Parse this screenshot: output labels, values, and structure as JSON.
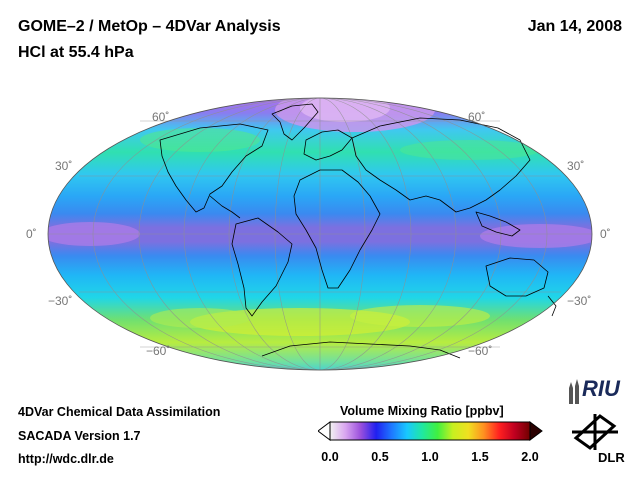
{
  "header": {
    "title_line1": "GOME–2 / MetOp – 4DVar Analysis",
    "title_line2": "HCl at 55.4 hPa",
    "date": "Jan 14, 2008"
  },
  "map": {
    "projection": "Mollweide",
    "latitude_labels": {
      "n60": "60˚",
      "n30": "30˚",
      "eq": "0˚",
      "s30": "−30˚",
      "s60": "−60˚"
    }
  },
  "footer": {
    "line1": "4DVar Chemical Data Assimilation",
    "line2": "SACADA Version 1.7",
    "url": "http://wdc.dlr.de"
  },
  "colorbar": {
    "title": "Volume Mixing Ratio [ppbv]",
    "ticks": [
      "0.0",
      "0.5",
      "1.0",
      "1.5",
      "2.0"
    ],
    "min": 0.0,
    "max": 2.0,
    "stops": [
      "#f2f2f2",
      "#d9a6f0",
      "#9a4fdc",
      "#2020f0",
      "#1e78ff",
      "#18c8ff",
      "#20e8a0",
      "#40f040",
      "#c8f020",
      "#f0e020",
      "#ff9020",
      "#ff2020",
      "#c00020",
      "#700000"
    ]
  },
  "logos": {
    "riu": "RIU",
    "dlr": "DLR"
  },
  "colors": {
    "ocean_band_blue": "#4fa0f0",
    "equator_purple": "#a070e0",
    "arctic_violet": "#c89ae8",
    "southern_green": "#a8ec50",
    "coast": "#000000"
  }
}
